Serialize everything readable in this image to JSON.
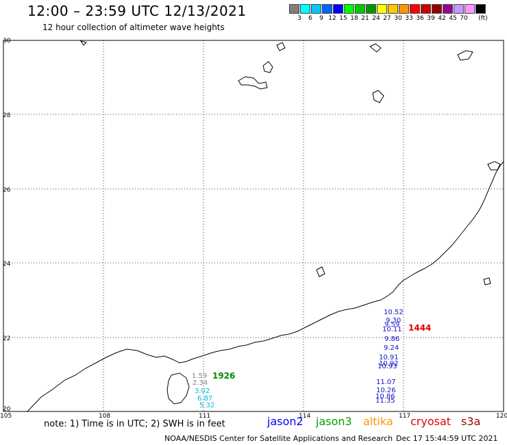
{
  "header": {
    "title": "12:00 – 23:59 UTC 12/13/2021",
    "subtitle": "12 hour collection of altimeter wave heights"
  },
  "scale": {
    "colors": [
      "#808080",
      "#00ffff",
      "#00c8ff",
      "#0064ff",
      "#0000ff",
      "#00ff00",
      "#00c800",
      "#009600",
      "#ffff00",
      "#ffc800",
      "#ff9600",
      "#ff0000",
      "#c80000",
      "#960000",
      "#960096",
      "#c896ff",
      "#ff96ff",
      "#000000"
    ],
    "labels": [
      "3",
      "6",
      "9",
      "12",
      "15",
      "18",
      "21",
      "24",
      "27",
      "30",
      "33",
      "36",
      "39",
      "42",
      "45",
      "70",
      "(ft)"
    ]
  },
  "axes": {
    "lat_labels": [
      "30",
      "28",
      "26",
      "24",
      "22",
      "20"
    ],
    "lon_labels": [
      "105",
      "108",
      "111",
      "114",
      "117",
      "120"
    ]
  },
  "map": {
    "lat_range": [
      20,
      30
    ],
    "lon_range": [
      105,
      120
    ]
  },
  "passes": [
    {
      "label": "1444",
      "color": "#e00000"
    },
    {
      "label": "1926",
      "color": "#008800"
    }
  ],
  "observations": [
    {
      "value": "10.52",
      "color": "#1010c8"
    },
    {
      "value": "9.30",
      "color": "#1010c8"
    },
    {
      "value": "9.59",
      "color": "#1010c8"
    },
    {
      "value": "10.11",
      "color": "#1010c8"
    },
    {
      "value": "9.86",
      "color": "#1010c8"
    },
    {
      "value": "9.24",
      "color": "#1010c8"
    },
    {
      "value": "10.91",
      "color": "#1010c8"
    },
    {
      "value": "10.92",
      "color": "#1010c8"
    },
    {
      "value": "10.93",
      "color": "#1010c8"
    },
    {
      "value": "11.07",
      "color": "#1010c8"
    },
    {
      "value": "10.26",
      "color": "#1010c8"
    },
    {
      "value": "10.86",
      "color": "#1010c8"
    },
    {
      "value": "11.35",
      "color": "#1010c8"
    },
    {
      "value": "1.59",
      "color": "#808080"
    },
    {
      "value": "2.34",
      "color": "#808080"
    },
    {
      "value": "3.02",
      "color": "#00bcd4"
    },
    {
      "value": "6.87",
      "color": "#00bcd4"
    },
    {
      "value": "5.32",
      "color": "#00bcd4"
    }
  ],
  "legend": {
    "note": "note: 1) Time is in UTC; 2) SWH is in feet",
    "satellites": [
      {
        "name": "jason2",
        "color": "#0000ff"
      },
      {
        "name": "jason3",
        "color": "#00a000"
      },
      {
        "name": "altika",
        "color": "#ff9600"
      },
      {
        "name": "cryosat",
        "color": "#e00000"
      },
      {
        "name": "s3a",
        "color": "#960000"
      }
    ]
  },
  "footer": {
    "credit": "NOAA/NESDIS Center for Satellite Applications and Research",
    "timestamp": "Dec 17 15:44:59 UTC 2021"
  }
}
